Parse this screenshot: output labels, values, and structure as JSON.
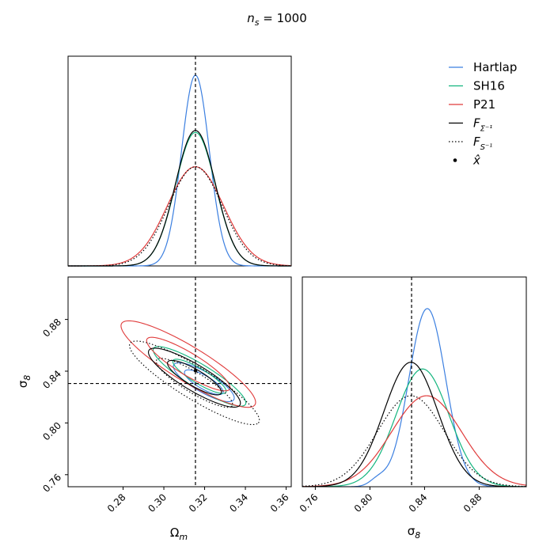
{
  "title": "n_s = 1000",
  "title_parts": {
    "base": "n",
    "sub": "s",
    "rest": " = 1000"
  },
  "colors": {
    "hartlap": "#3b7fe0",
    "sh16": "#13b57e",
    "p21": "#e03b3b",
    "fisher": "#000000"
  },
  "legend": {
    "placement": "top-right",
    "items": [
      {
        "key": "hartlap",
        "label": "Hartlap",
        "style": "solid",
        "color": "#3b7fe0"
      },
      {
        "key": "sh16",
        "label": "SH16",
        "style": "solid",
        "color": "#13b57e"
      },
      {
        "key": "p21",
        "label": "P21",
        "style": "solid",
        "color": "#e03b3b"
      },
      {
        "key": "fisher_sigma",
        "label": "F_{Σ^{-1}}",
        "base": "F",
        "sub": "Σ⁻¹",
        "style": "solid",
        "color": "#000000"
      },
      {
        "key": "fisher_s",
        "label": "F_{S^{-1}}",
        "base": "F",
        "sub": "S⁻¹",
        "style": "dotted",
        "color": "#000000"
      },
      {
        "key": "xhat",
        "label": "x̂",
        "style": "point",
        "color": "#000000"
      }
    ]
  },
  "chart_data": [
    {
      "type": "line",
      "panel": "marginal-omega",
      "title": "",
      "xlabel": "",
      "ylabel": "",
      "xlim": [
        0.253,
        0.3625
      ],
      "x_ticks": [],
      "truth_x": 0.3155,
      "series": [
        {
          "key": "hartlap",
          "mean": 0.3155,
          "sd": 0.0068,
          "peak": 1.0
        },
        {
          "key": "sh16",
          "mean": 0.3155,
          "sd": 0.0098,
          "peak": 0.7
        },
        {
          "key": "p21",
          "mean": 0.3155,
          "sd": 0.0138,
          "peak": 0.52
        },
        {
          "key": "fisher_sigma",
          "mean": 0.3155,
          "sd": 0.0098,
          "peak": 0.71
        },
        {
          "key": "fisher_s",
          "mean": 0.3155,
          "sd": 0.0132,
          "peak": 0.52
        }
      ]
    },
    {
      "type": "scatter",
      "panel": "joint-omega-sigma8",
      "title": "",
      "xlabel": "Ω_m",
      "ylabel": "σ_8",
      "xlim": [
        0.253,
        0.3625
      ],
      "ylim": [
        0.7507,
        0.9128
      ],
      "x_ticks": [
        "0.28",
        "0.30",
        "0.32",
        "0.34",
        "0.36"
      ],
      "y_ticks": [
        "0.76",
        "0.80",
        "0.84",
        "0.88"
      ],
      "truth": {
        "x": 0.3155,
        "y": 0.8305
      },
      "point_xhat": {
        "x": 0.3155,
        "y": 0.8405
      },
      "ellipses": [
        {
          "key": "hartlap",
          "cx": 0.3196,
          "cy": 0.8315,
          "levels": [
            {
              "rx": 0.0168,
              "ry": 0.0045,
              "angle": 33
            },
            {
              "rx": 0.0106,
              "ry": 0.003,
              "angle": 33
            }
          ]
        },
        {
          "key": "sh16",
          "cx": 0.3175,
          "cy": 0.836,
          "levels": [
            {
              "rx": 0.0262,
              "ry": 0.0053,
              "angle": 33
            },
            {
              "rx": 0.015,
              "ry": 0.0033,
              "angle": 33
            }
          ]
        },
        {
          "key": "p21",
          "cx": 0.312,
          "cy": 0.8455,
          "levels": [
            {
              "rx": 0.038,
              "ry": 0.0078,
              "angle": 33
            },
            {
              "rx": 0.0235,
              "ry": 0.005,
              "angle": 33
            }
          ]
        },
        {
          "key": "fisher_sigma",
          "cx": 0.315,
          "cy": 0.835,
          "levels": [
            {
              "rx": 0.0258,
              "ry": 0.0058,
              "angle": 33
            },
            {
              "rx": 0.015,
              "ry": 0.0037,
              "angle": 33
            }
          ]
        },
        {
          "key": "fisher_s",
          "cx": 0.315,
          "cy": 0.831,
          "levels": [
            {
              "rx": 0.0368,
              "ry": 0.0072,
              "angle": 33
            },
            {
              "rx": 0.0215,
              "ry": 0.0046,
              "angle": 33
            }
          ]
        }
      ]
    },
    {
      "type": "line",
      "panel": "marginal-sigma8",
      "title": "",
      "xlabel": "σ_8",
      "ylabel": "",
      "xlim": [
        0.7505,
        0.9145
      ],
      "x_ticks": [
        "0.76",
        "0.80",
        "0.84",
        "0.88"
      ],
      "truth_x": 0.8305,
      "series": [
        {
          "key": "hartlap",
          "peaks": [
            {
              "mean": 0.842,
              "sd": 0.0135,
              "h": 0.93
            },
            {
              "mean": 0.806,
              "sd": 0.006,
              "h": 0.035
            }
          ]
        },
        {
          "key": "sh16",
          "mean": 0.8385,
          "sd": 0.0195,
          "peak": 0.615
        },
        {
          "key": "p21",
          "mean": 0.8415,
          "sd": 0.0255,
          "peak": 0.475
        },
        {
          "key": "fisher_sigma",
          "mean": 0.83,
          "sd": 0.0197,
          "peak": 0.65
        },
        {
          "key": "fisher_s",
          "mean": 0.83,
          "sd": 0.0245,
          "peak": 0.475
        }
      ]
    }
  ]
}
